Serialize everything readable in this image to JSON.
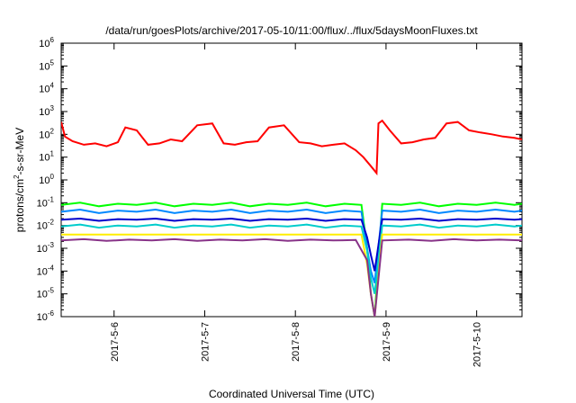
{
  "chart_data": {
    "type": "line",
    "title": "/data/run/goesPlots/archive/2017-05-10/11:00/flux/../flux/5daysMoonFluxes.txt",
    "xlabel": "Coordinated Universal Time (UTC)",
    "ylabel": {
      "base": "protons/cm",
      "sup": "2",
      "tail": "-s-sr-MeV"
    },
    "y_scale": "log",
    "ylim": [
      1e-06,
      1000000
    ],
    "y_ticks": [
      {
        "base": "10",
        "exp": "-6",
        "value": 1e-06
      },
      {
        "base": "10",
        "exp": "-5",
        "value": 1e-05
      },
      {
        "base": "10",
        "exp": "-4",
        "value": 0.0001
      },
      {
        "base": "10",
        "exp": "-3",
        "value": 0.001
      },
      {
        "base": "10",
        "exp": "-2",
        "value": 0.01
      },
      {
        "base": "10",
        "exp": "-1",
        "value": 0.1
      },
      {
        "base": "10",
        "exp": "0",
        "value": 1
      },
      {
        "base": "10",
        "exp": "1",
        "value": 10
      },
      {
        "base": "10",
        "exp": "2",
        "value": 100
      },
      {
        "base": "10",
        "exp": "3",
        "value": 1000
      },
      {
        "base": "10",
        "exp": "4",
        "value": 10000
      },
      {
        "base": "10",
        "exp": "5",
        "value": 100000
      },
      {
        "base": "10",
        "exp": "6",
        "value": 1000000
      }
    ],
    "xlim": [
      "2017-05-05T10:00",
      "2017-05-10T12:00"
    ],
    "x_ticks": [
      {
        "label": "2017-5-6",
        "value": "2017-05-06T00:00"
      },
      {
        "label": "2017-5-7",
        "value": "2017-05-07T00:00"
      },
      {
        "label": "2017-5-8",
        "value": "2017-05-08T00:00"
      },
      {
        "label": "2017-5-9",
        "value": "2017-05-09T00:00"
      },
      {
        "label": "2017-5-10",
        "value": "2017-05-10T00:00"
      }
    ],
    "grid": false,
    "legend": "none",
    "series": [
      {
        "color": "#ff0000",
        "x": [
          "2017-05-05T10:00",
          "2017-05-05T11:00",
          "2017-05-05T13:00",
          "2017-05-05T16:00",
          "2017-05-05T19:00",
          "2017-05-05T22:00",
          "2017-05-06T01:00",
          "2017-05-06T03:00",
          "2017-05-06T06:00",
          "2017-05-06T09:00",
          "2017-05-06T12:00",
          "2017-05-06T15:00",
          "2017-05-06T18:00",
          "2017-05-06T22:00",
          "2017-05-07T02:00",
          "2017-05-07T05:00",
          "2017-05-07T08:00",
          "2017-05-07T11:00",
          "2017-05-07T14:00",
          "2017-05-07T17:00",
          "2017-05-07T21:00",
          "2017-05-08T01:00",
          "2017-05-08T04:00",
          "2017-05-08T07:00",
          "2017-05-08T10:00",
          "2017-05-08T13:00",
          "2017-05-08T16:00",
          "2017-05-08T18:00",
          "2017-05-08T20:00",
          "2017-05-08T21:30",
          "2017-05-08T22:00",
          "2017-05-08T23:00",
          "2017-05-09T01:00",
          "2017-05-09T04:00",
          "2017-05-09T07:00",
          "2017-05-09T10:00",
          "2017-05-09T13:00",
          "2017-05-09T16:00",
          "2017-05-09T19:00",
          "2017-05-09T22:00",
          "2017-05-10T01:00",
          "2017-05-10T04:00",
          "2017-05-10T07:00",
          "2017-05-10T10:00",
          "2017-05-10T12:00"
        ],
        "y": [
          350,
          80,
          50,
          35,
          40,
          30,
          45,
          200,
          150,
          35,
          40,
          60,
          50,
          250,
          300,
          40,
          35,
          45,
          50,
          200,
          250,
          45,
          40,
          30,
          35,
          40,
          20,
          10,
          4,
          2,
          300,
          400,
          150,
          40,
          45,
          60,
          70,
          300,
          350,
          150,
          120,
          100,
          80,
          70,
          60
        ]
      },
      {
        "color": "#00ff00",
        "x": [
          "2017-05-05T10:00",
          "2017-05-05T15:00",
          "2017-05-05T20:00",
          "2017-05-06T01:00",
          "2017-05-06T06:00",
          "2017-05-06T11:00",
          "2017-05-06T16:00",
          "2017-05-06T21:00",
          "2017-05-07T02:00",
          "2017-05-07T07:00",
          "2017-05-07T12:00",
          "2017-05-07T17:00",
          "2017-05-07T22:00",
          "2017-05-08T03:00",
          "2017-05-08T08:00",
          "2017-05-08T13:00",
          "2017-05-08T17:30",
          "2017-05-08T19:00",
          "2017-05-08T20:00",
          "2017-05-08T21:00",
          "2017-05-08T23:00",
          "2017-05-09T04:00",
          "2017-05-09T09:00",
          "2017-05-09T14:00",
          "2017-05-09T19:00",
          "2017-05-10T00:00",
          "2017-05-10T05:00",
          "2017-05-10T10:00",
          "2017-05-10T12:00"
        ],
        "y": [
          0.08,
          0.1,
          0.07,
          0.09,
          0.08,
          0.1,
          0.07,
          0.09,
          0.08,
          0.1,
          0.07,
          0.09,
          0.08,
          0.1,
          0.07,
          0.09,
          0.08,
          0.001,
          1e-05,
          1e-06,
          0.09,
          0.08,
          0.1,
          0.07,
          0.09,
          0.08,
          0.1,
          0.08,
          0.09
        ]
      },
      {
        "color": "#0088ff",
        "x": [
          "2017-05-05T10:00",
          "2017-05-05T15:00",
          "2017-05-05T20:00",
          "2017-05-06T01:00",
          "2017-05-06T06:00",
          "2017-05-06T11:00",
          "2017-05-06T16:00",
          "2017-05-06T21:00",
          "2017-05-07T02:00",
          "2017-05-07T07:00",
          "2017-05-07T12:00",
          "2017-05-07T17:00",
          "2017-05-07T22:00",
          "2017-05-08T03:00",
          "2017-05-08T08:00",
          "2017-05-08T13:00",
          "2017-05-08T17:30",
          "2017-05-08T19:00",
          "2017-05-08T20:00",
          "2017-05-08T21:00",
          "2017-05-08T23:00",
          "2017-05-09T04:00",
          "2017-05-09T09:00",
          "2017-05-09T14:00",
          "2017-05-09T19:00",
          "2017-05-10T00:00",
          "2017-05-10T05:00",
          "2017-05-10T10:00",
          "2017-05-10T12:00"
        ],
        "y": [
          0.04,
          0.05,
          0.035,
          0.045,
          0.04,
          0.05,
          0.035,
          0.045,
          0.04,
          0.05,
          0.035,
          0.045,
          0.04,
          0.05,
          0.035,
          0.045,
          0.04,
          0.001,
          0.0001,
          3e-05,
          0.045,
          0.04,
          0.05,
          0.035,
          0.045,
          0.04,
          0.05,
          0.04,
          0.045
        ]
      },
      {
        "color": "#0000cc",
        "x": [
          "2017-05-05T10:00",
          "2017-05-05T15:00",
          "2017-05-05T20:00",
          "2017-05-06T01:00",
          "2017-05-06T06:00",
          "2017-05-06T11:00",
          "2017-05-06T16:00",
          "2017-05-06T21:00",
          "2017-05-07T02:00",
          "2017-05-07T07:00",
          "2017-05-07T12:00",
          "2017-05-07T17:00",
          "2017-05-07T22:00",
          "2017-05-08T03:00",
          "2017-05-08T08:00",
          "2017-05-08T13:00",
          "2017-05-08T17:30",
          "2017-05-08T19:00",
          "2017-05-08T20:00",
          "2017-05-08T21:00",
          "2017-05-08T23:00",
          "2017-05-09T04:00",
          "2017-05-09T09:00",
          "2017-05-09T14:00",
          "2017-05-09T19:00",
          "2017-05-10T00:00",
          "2017-05-10T05:00",
          "2017-05-10T10:00",
          "2017-05-10T12:00"
        ],
        "y": [
          0.018,
          0.02,
          0.016,
          0.019,
          0.018,
          0.02,
          0.016,
          0.019,
          0.018,
          0.02,
          0.016,
          0.019,
          0.018,
          0.02,
          0.016,
          0.019,
          0.018,
          0.003,
          0.0005,
          0.0001,
          0.019,
          0.018,
          0.02,
          0.016,
          0.019,
          0.018,
          0.02,
          0.018,
          0.019
        ]
      },
      {
        "color": "#00cccc",
        "x": [
          "2017-05-05T10:00",
          "2017-05-05T15:00",
          "2017-05-05T20:00",
          "2017-05-06T01:00",
          "2017-05-06T06:00",
          "2017-05-06T11:00",
          "2017-05-06T16:00",
          "2017-05-06T21:00",
          "2017-05-07T02:00",
          "2017-05-07T07:00",
          "2017-05-07T12:00",
          "2017-05-07T17:00",
          "2017-05-07T22:00",
          "2017-05-08T03:00",
          "2017-05-08T08:00",
          "2017-05-08T13:00",
          "2017-05-08T17:30",
          "2017-05-08T19:00",
          "2017-05-08T20:00",
          "2017-05-08T21:00",
          "2017-05-08T23:00",
          "2017-05-09T04:00",
          "2017-05-09T09:00",
          "2017-05-09T14:00",
          "2017-05-09T19:00",
          "2017-05-10T00:00",
          "2017-05-10T05:00",
          "2017-05-10T10:00",
          "2017-05-10T12:00"
        ],
        "y": [
          0.009,
          0.011,
          0.008,
          0.01,
          0.009,
          0.011,
          0.008,
          0.01,
          0.009,
          0.011,
          0.008,
          0.01,
          0.009,
          0.011,
          0.008,
          0.01,
          0.009,
          0.0008,
          5e-05,
          1e-05,
          0.01,
          0.009,
          0.011,
          0.008,
          0.01,
          0.009,
          0.011,
          0.009,
          0.01
        ]
      },
      {
        "color": "#ffee00",
        "x": [
          "2017-05-05T10:00",
          "2017-05-06T10:00",
          "2017-05-07T10:00",
          "2017-05-08T10:00",
          "2017-05-08T17:30",
          "2017-05-08T19:00",
          "2017-05-08T20:00",
          "2017-05-08T21:00",
          "2017-05-08T23:00",
          "2017-05-09T12:00",
          "2017-05-10T00:00",
          "2017-05-10T12:00"
        ],
        "y": [
          0.004,
          0.004,
          0.004,
          0.004,
          0.004,
          0.0002,
          1e-05,
          1e-06,
          0.004,
          0.004,
          0.004,
          0.004
        ]
      },
      {
        "color": "#883388",
        "x": [
          "2017-05-05T10:00",
          "2017-05-05T16:00",
          "2017-05-05T22:00",
          "2017-05-06T04:00",
          "2017-05-06T10:00",
          "2017-05-06T16:00",
          "2017-05-06T22:00",
          "2017-05-07T04:00",
          "2017-05-07T10:00",
          "2017-05-07T16:00",
          "2017-05-07T22:00",
          "2017-05-08T04:00",
          "2017-05-08T10:00",
          "2017-05-08T16:00",
          "2017-05-08T19:00",
          "2017-05-08T20:00",
          "2017-05-08T21:00",
          "2017-05-08T23:00",
          "2017-05-09T06:00",
          "2017-05-09T12:00",
          "2017-05-09T18:00",
          "2017-05-10T00:00",
          "2017-05-10T06:00",
          "2017-05-10T12:00"
        ],
        "y": [
          0.0022,
          0.0025,
          0.0021,
          0.0024,
          0.0022,
          0.0025,
          0.0021,
          0.0024,
          0.0022,
          0.0025,
          0.0021,
          0.0024,
          0.0022,
          0.0023,
          0.0003,
          1e-05,
          1e-06,
          0.0022,
          0.0024,
          0.0021,
          0.0025,
          0.0022,
          0.0024,
          0.0022
        ]
      }
    ]
  }
}
